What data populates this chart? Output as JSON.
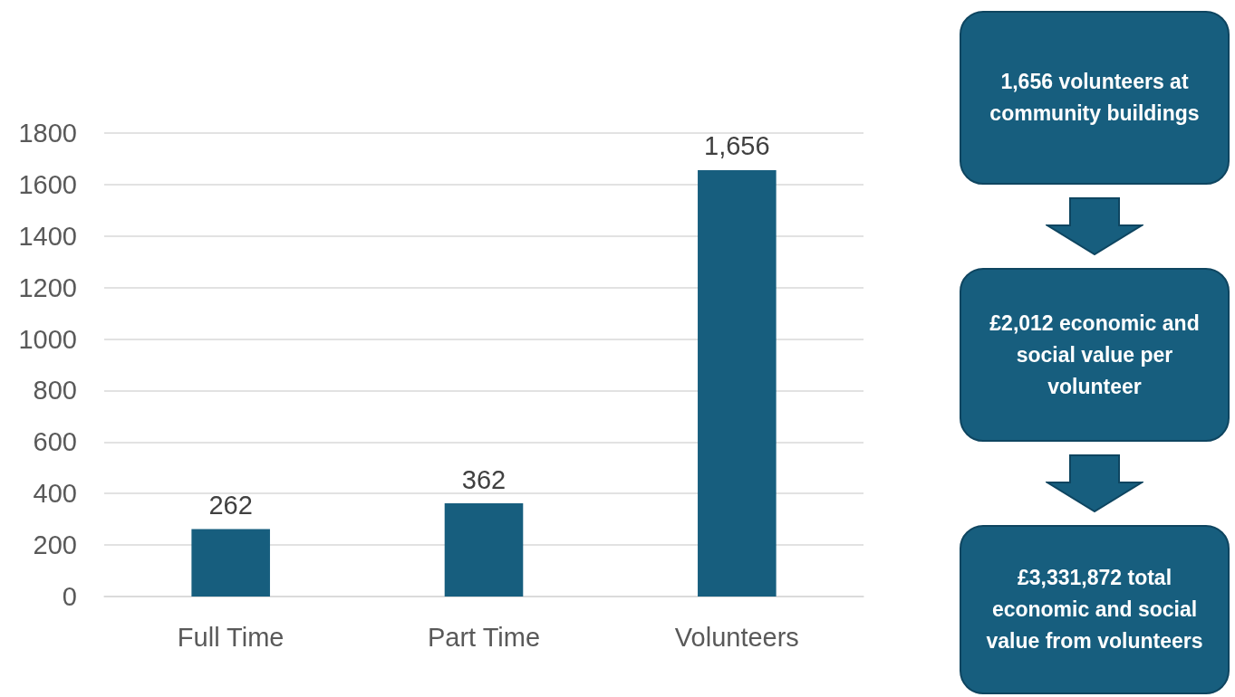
{
  "chart_data": {
    "type": "bar",
    "categories": [
      "Full Time",
      "Part Time",
      "Volunteers"
    ],
    "values": [
      262,
      362,
      1656
    ],
    "value_labels": [
      "262",
      "362",
      "1,656"
    ],
    "color": "#175e7e",
    "ylim": [
      0,
      1800
    ],
    "yticks": [
      0,
      200,
      400,
      600,
      800,
      1000,
      1200,
      1400,
      1600,
      1800
    ],
    "grid": "y",
    "annotations": [
      "1,656 volunteers at community buildings",
      "£2,012 economic and social value per volunteer",
      "£3,331,872 total economic and social value from volunteers"
    ]
  }
}
